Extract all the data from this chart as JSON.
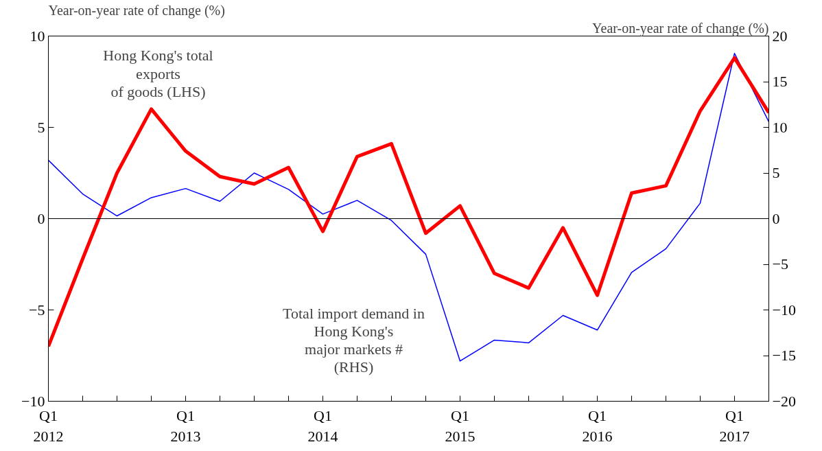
{
  "chart_data": {
    "type": "line",
    "ylabel": "Year-on-year rate of change (%)",
    "y2label": "Year-on-year rate of change (%)",
    "categories": [
      "Q1\n2012",
      null,
      null,
      null,
      "Q1\n2013",
      null,
      null,
      null,
      "Q1\n2014",
      null,
      null,
      null,
      "Q1\n2015",
      null,
      null,
      null,
      "Q1\n2016",
      null,
      null,
      null,
      "Q1\n2017",
      null
    ],
    "series": [
      {
        "name": "Total import demand in\nHong Kong's\nmajor markets #\n(RHS)",
        "color": "#0000ff",
        "axis": "y2",
        "values": [
          6.4,
          2.7,
          0.3,
          2.3,
          3.3,
          1.9,
          5.0,
          3.2,
          0.5,
          2.0,
          -0.2,
          -3.9,
          -15.6,
          -13.3,
          -13.6,
          -10.6,
          -12.2,
          -5.9,
          -3.3,
          1.7,
          18.1,
          10.6
        ]
      },
      {
        "name": "Hong Kong's total\nexports\nof goods (LHS)",
        "color": "#ff0000",
        "values": [
          -7.0,
          -2.2,
          2.5,
          6.0,
          3.7,
          2.3,
          1.9,
          2.8,
          -0.7,
          3.4,
          4.1,
          -0.8,
          0.7,
          -3.0,
          -3.8,
          -0.5,
          -4.2,
          1.4,
          1.8,
          5.9,
          8.8,
          5.8
        ]
      }
    ],
    "ylim": [
      -10,
      10
    ],
    "yticks": [
      -10,
      -5,
      0,
      5,
      10
    ],
    "y2lim": [
      -20,
      20
    ],
    "y2ticks": [
      -20,
      -15,
      -10,
      -5,
      0,
      5,
      10,
      15,
      20
    ],
    "ref_lines": [
      {
        "axis": "y",
        "value": 0,
        "color": "#000000"
      }
    ],
    "grid": false
  }
}
